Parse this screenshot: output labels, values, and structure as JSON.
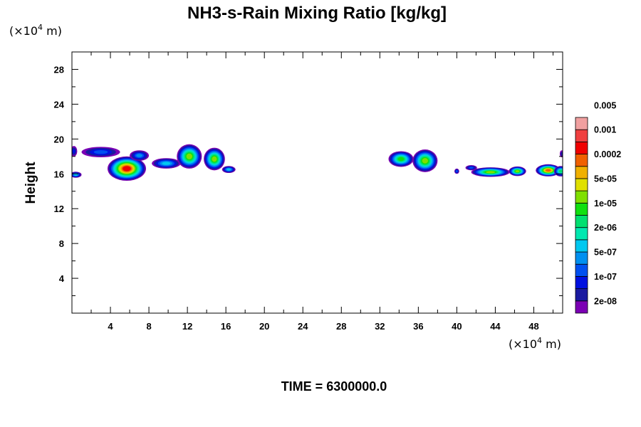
{
  "chart_data": {
    "type": "heatmap",
    "title": "NH3-s-Rain Mixing Ratio [kg/kg]",
    "ylabel": "Height",
    "xlabel": "",
    "x_unit_prefix": "(×10",
    "x_unit_exp": "4",
    "x_unit_suffix": " m)",
    "y_unit_prefix": "(×10",
    "y_unit_exp": "4",
    "y_unit_suffix": " m)",
    "xlim": [
      0,
      51
    ],
    "ylim": [
      0,
      30
    ],
    "x_ticks": [
      4,
      8,
      12,
      16,
      20,
      24,
      28,
      32,
      36,
      40,
      44,
      48
    ],
    "x_tick_labels": [
      "4",
      "8",
      "12",
      "16",
      "20",
      "24",
      "28",
      "32",
      "36",
      "40",
      "44",
      "48"
    ],
    "y_ticks": [
      4,
      8,
      12,
      16,
      20,
      24,
      28
    ],
    "y_tick_labels": [
      "4",
      "8",
      "12",
      "16",
      "20",
      "24",
      "28"
    ],
    "footer": "TIME = 6300000.0",
    "colorbar": {
      "colors": [
        "#7b00b4",
        "#1a1aa0",
        "#0010e0",
        "#0050f0",
        "#0090f0",
        "#00c8f0",
        "#00e8b0",
        "#00e070",
        "#10e010",
        "#80e000",
        "#e0e000",
        "#f0b000",
        "#f06000",
        "#f00000",
        "#f04040",
        "#f0a0a0"
      ],
      "labels": [
        "2e-08",
        "1e-07",
        "5e-07",
        "2e-06",
        "1e-05",
        "5e-05",
        "0.0002",
        "0.001",
        "0.005"
      ]
    },
    "clouds": [
      {
        "x": 0.2,
        "y": 18.6,
        "rx": 0.35,
        "ry": 0.6,
        "peak": 2
      },
      {
        "x": 0.4,
        "y": 15.9,
        "rx": 0.6,
        "ry": 0.35,
        "peak": 5
      },
      {
        "x": 3.0,
        "y": 18.5,
        "rx": 2.0,
        "ry": 0.6,
        "peak": 3
      },
      {
        "x": 5.7,
        "y": 16.6,
        "rx": 2.0,
        "ry": 1.4,
        "peak": 13
      },
      {
        "x": 7.0,
        "y": 18.1,
        "rx": 1.0,
        "ry": 0.6,
        "peak": 4
      },
      {
        "x": 9.8,
        "y": 17.2,
        "rx": 1.5,
        "ry": 0.6,
        "peak": 5
      },
      {
        "x": 12.2,
        "y": 18.0,
        "rx": 1.3,
        "ry": 1.4,
        "peak": 9
      },
      {
        "x": 14.8,
        "y": 17.7,
        "rx": 1.1,
        "ry": 1.3,
        "peak": 9
      },
      {
        "x": 16.3,
        "y": 16.5,
        "rx": 0.7,
        "ry": 0.4,
        "peak": 5
      },
      {
        "x": 34.2,
        "y": 17.7,
        "rx": 1.3,
        "ry": 0.9,
        "peak": 8
      },
      {
        "x": 36.7,
        "y": 17.5,
        "rx": 1.3,
        "ry": 1.3,
        "peak": 9
      },
      {
        "x": 40.0,
        "y": 16.3,
        "rx": 0.25,
        "ry": 0.3,
        "peak": 3
      },
      {
        "x": 41.5,
        "y": 16.7,
        "rx": 0.6,
        "ry": 0.3,
        "peak": 3
      },
      {
        "x": 43.5,
        "y": 16.2,
        "rx": 2.0,
        "ry": 0.55,
        "peak": 9
      },
      {
        "x": 46.3,
        "y": 16.3,
        "rx": 0.9,
        "ry": 0.55,
        "peak": 9
      },
      {
        "x": 49.5,
        "y": 16.4,
        "rx": 1.3,
        "ry": 0.7,
        "peak": 12
      },
      {
        "x": 50.8,
        "y": 16.3,
        "rx": 0.7,
        "ry": 0.6,
        "peak": 7
      },
      {
        "x": 50.9,
        "y": 18.3,
        "rx": 0.2,
        "ry": 0.4,
        "peak": 1
      }
    ]
  }
}
